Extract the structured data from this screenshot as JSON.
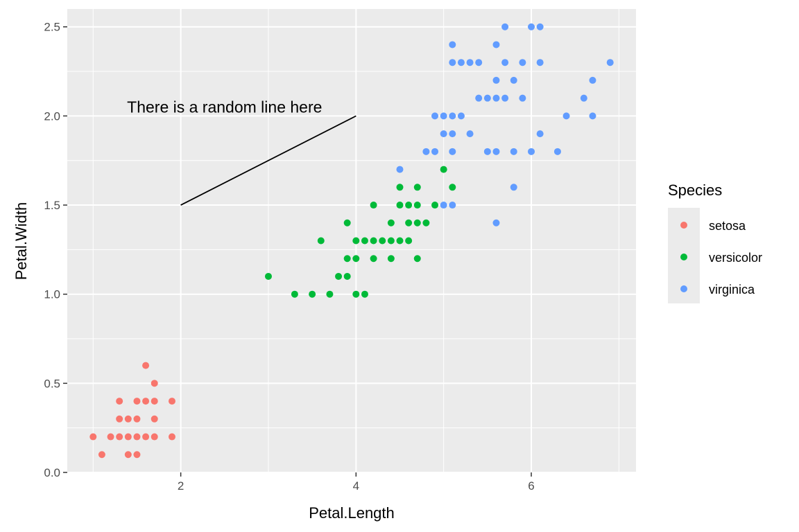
{
  "chart_data": {
    "type": "scatter",
    "title": "",
    "xlabel": "Petal.Length",
    "ylabel": "Petal.Width",
    "xlim": [
      0.705,
      7.195
    ],
    "ylim": [
      0,
      2.6
    ],
    "x_ticks": [
      2,
      4,
      6
    ],
    "y_ticks": [
      0.0,
      0.5,
      1.0,
      1.5,
      2.0,
      2.5
    ],
    "x_tick_labels": [
      "2",
      "4",
      "6"
    ],
    "y_tick_labels": [
      "0.0",
      "0.5",
      "1.0",
      "1.5",
      "2.0",
      "2.5"
    ],
    "grid": true,
    "legend": {
      "title": "Species",
      "placement": "right",
      "entries": [
        "setosa",
        "versicolor",
        "virginica"
      ]
    },
    "annotation": {
      "text": "There is a random line here",
      "text_anchor": [
        2.5,
        2.05
      ],
      "segment": {
        "x1": 2,
        "y1": 1.5,
        "x2": 4,
        "y2": 2
      }
    },
    "series": [
      {
        "name": "setosa",
        "color": "#F8766D",
        "points": [
          [
            1.0,
            0.2
          ],
          [
            1.1,
            0.1
          ],
          [
            1.2,
            0.2
          ],
          [
            1.3,
            0.2
          ],
          [
            1.3,
            0.3
          ],
          [
            1.3,
            0.4
          ],
          [
            1.4,
            0.1
          ],
          [
            1.4,
            0.2
          ],
          [
            1.4,
            0.3
          ],
          [
            1.5,
            0.1
          ],
          [
            1.5,
            0.2
          ],
          [
            1.5,
            0.3
          ],
          [
            1.5,
            0.4
          ],
          [
            1.6,
            0.2
          ],
          [
            1.6,
            0.4
          ],
          [
            1.6,
            0.6
          ],
          [
            1.7,
            0.2
          ],
          [
            1.7,
            0.3
          ],
          [
            1.7,
            0.4
          ],
          [
            1.7,
            0.5
          ],
          [
            1.9,
            0.2
          ],
          [
            1.9,
            0.4
          ]
        ]
      },
      {
        "name": "versicolor",
        "color": "#00BA38",
        "points": [
          [
            3.0,
            1.1
          ],
          [
            3.3,
            1.0
          ],
          [
            3.5,
            1.0
          ],
          [
            3.6,
            1.3
          ],
          [
            3.7,
            1.0
          ],
          [
            3.8,
            1.1
          ],
          [
            3.9,
            1.1
          ],
          [
            3.9,
            1.2
          ],
          [
            3.9,
            1.4
          ],
          [
            4.0,
            1.0
          ],
          [
            4.0,
            1.2
          ],
          [
            4.0,
            1.3
          ],
          [
            4.1,
            1.0
          ],
          [
            4.1,
            1.3
          ],
          [
            4.2,
            1.2
          ],
          [
            4.2,
            1.3
          ],
          [
            4.2,
            1.5
          ],
          [
            4.3,
            1.3
          ],
          [
            4.4,
            1.2
          ],
          [
            4.4,
            1.3
          ],
          [
            4.4,
            1.4
          ],
          [
            4.5,
            1.3
          ],
          [
            4.5,
            1.5
          ],
          [
            4.5,
            1.6
          ],
          [
            4.6,
            1.3
          ],
          [
            4.6,
            1.4
          ],
          [
            4.6,
            1.5
          ],
          [
            4.7,
            1.2
          ],
          [
            4.7,
            1.4
          ],
          [
            4.7,
            1.5
          ],
          [
            4.7,
            1.6
          ],
          [
            4.8,
            1.4
          ],
          [
            4.9,
            1.5
          ],
          [
            5.0,
            1.7
          ],
          [
            5.1,
            1.6
          ]
        ]
      },
      {
        "name": "virginica",
        "color": "#619CFF",
        "points": [
          [
            4.5,
            1.7
          ],
          [
            4.8,
            1.8
          ],
          [
            4.9,
            1.8
          ],
          [
            4.9,
            2.0
          ],
          [
            5.0,
            1.5
          ],
          [
            5.0,
            1.9
          ],
          [
            5.0,
            2.0
          ],
          [
            5.1,
            1.5
          ],
          [
            5.1,
            1.8
          ],
          [
            5.1,
            1.9
          ],
          [
            5.1,
            2.0
          ],
          [
            5.1,
            2.3
          ],
          [
            5.1,
            2.4
          ],
          [
            5.2,
            2.0
          ],
          [
            5.2,
            2.3
          ],
          [
            5.3,
            1.9
          ],
          [
            5.3,
            2.3
          ],
          [
            5.4,
            2.1
          ],
          [
            5.4,
            2.3
          ],
          [
            5.5,
            1.8
          ],
          [
            5.5,
            2.1
          ],
          [
            5.6,
            1.4
          ],
          [
            5.6,
            1.8
          ],
          [
            5.6,
            2.1
          ],
          [
            5.6,
            2.2
          ],
          [
            5.6,
            2.4
          ],
          [
            5.7,
            2.1
          ],
          [
            5.7,
            2.3
          ],
          [
            5.7,
            2.5
          ],
          [
            5.8,
            1.6
          ],
          [
            5.8,
            1.8
          ],
          [
            5.8,
            2.2
          ],
          [
            5.9,
            2.1
          ],
          [
            5.9,
            2.3
          ],
          [
            6.0,
            1.8
          ],
          [
            6.0,
            2.5
          ],
          [
            6.1,
            1.9
          ],
          [
            6.1,
            2.3
          ],
          [
            6.1,
            2.5
          ],
          [
            6.3,
            1.8
          ],
          [
            6.4,
            2.0
          ],
          [
            6.6,
            2.1
          ],
          [
            6.7,
            2.0
          ],
          [
            6.7,
            2.2
          ],
          [
            6.9,
            2.3
          ]
        ]
      }
    ]
  }
}
